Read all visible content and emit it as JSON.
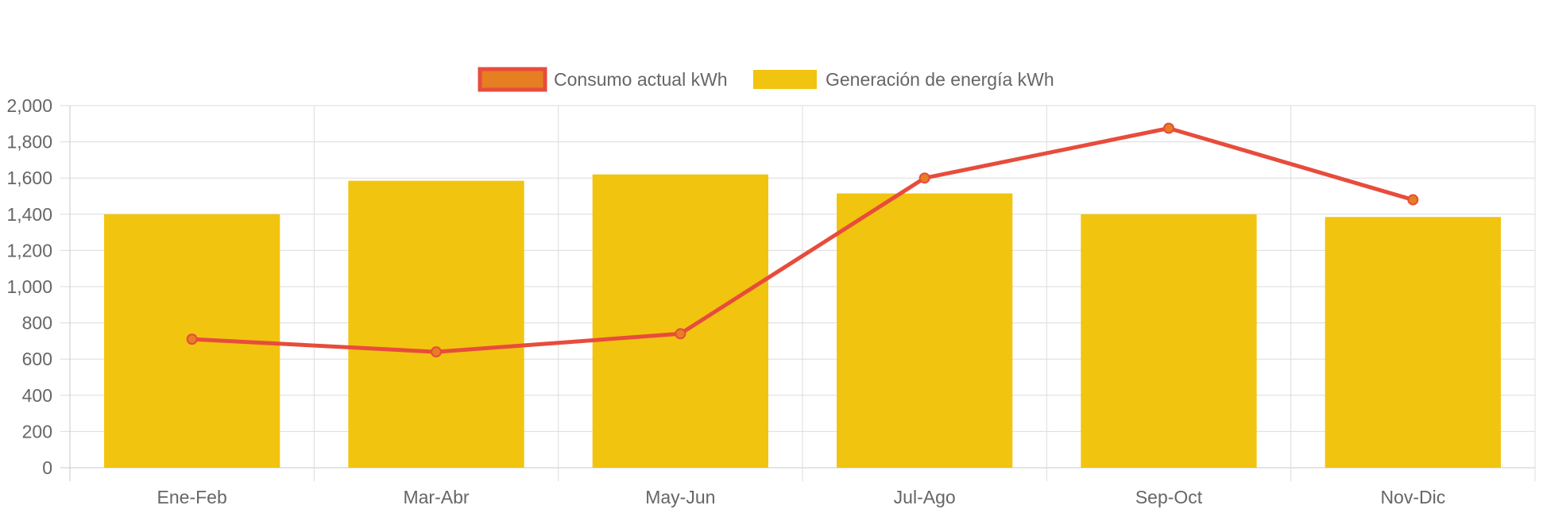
{
  "chart_data": {
    "type": "bar",
    "title": "",
    "xlabel": "",
    "ylabel": "",
    "categories": [
      "Ene-Feb",
      "Mar-Abr",
      "May-Jun",
      "Jul-Ago",
      "Sep-Oct",
      "Nov-Dic"
    ],
    "ylim": [
      0,
      2000
    ],
    "y_ticks": [
      "0",
      "200",
      "400",
      "600",
      "800",
      "1,000",
      "1,200",
      "1,400",
      "1,600",
      "1,800",
      "2,000"
    ],
    "y_tick_values": [
      0,
      200,
      400,
      600,
      800,
      1000,
      1200,
      1400,
      1600,
      1800,
      2000
    ],
    "grid": true,
    "legend_position": "top-center",
    "series": [
      {
        "name": "Consumo actual kWh",
        "kind": "line",
        "values": [
          710,
          640,
          740,
          1600,
          1875,
          1480
        ],
        "color": "#E74C3C",
        "point_fill": "#E67E22"
      },
      {
        "name": "Generación de energía kWh",
        "kind": "bar",
        "values": [
          1400,
          1585,
          1620,
          1515,
          1400,
          1385
        ],
        "color": "#F1C40F"
      }
    ]
  },
  "colors": {
    "grid": "#DCDCDC",
    "axis": "#C8C8C8",
    "text": "#666666",
    "legend_line_box_fill": "#E67E22",
    "legend_line_box_border": "#E74C3C"
  }
}
